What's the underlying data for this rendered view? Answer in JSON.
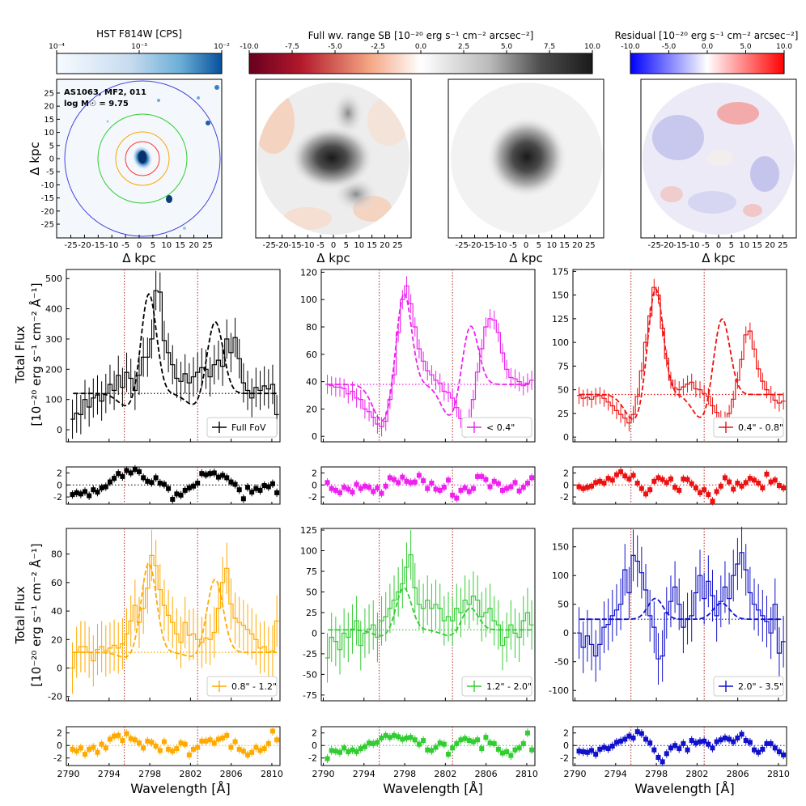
{
  "colorbars": [
    {
      "title": "HST F814W [CPS]",
      "labels": [
        "10⁻⁴",
        "10⁻³",
        "10⁻²"
      ],
      "palette": "blues"
    },
    {
      "title": "Full wv. range SB [10⁻²⁰ erg s⁻¹ cm⁻² arcsec⁻²]",
      "labels": [
        "-10.0",
        "-7.5",
        "-5.0",
        "-2.5",
        "0.0",
        "2.5",
        "5.0",
        "7.5",
        "10.0"
      ],
      "palette": "red-grey"
    },
    {
      "title": "Residual [10⁻²⁰ erg s⁻¹ cm⁻² arcsec⁻²]",
      "labels": [
        "-10.0",
        "-5.0",
        "0.0",
        "5.0",
        "10.0"
      ],
      "palette": "bwr"
    }
  ],
  "image_panels": {
    "hst_annotation": [
      "AS1063, MF2, 011",
      "log M☉ = 9.75"
    ],
    "x_label": "Δ kpc",
    "y_label": "Δ kpc",
    "tick_labels": [
      "-25",
      "-20",
      "-15",
      "-10",
      "-5",
      "0",
      "5",
      "10",
      "15",
      "20",
      "25"
    ],
    "aperture_colors": [
      "#ff3333",
      "#ffa500",
      "#33cc33",
      "#4444dd"
    ]
  },
  "spectra": {
    "x_label": "Wavelength [Å]",
    "y_label_lines": [
      "Total Flux",
      "[10⁻²⁰ erg s⁻¹ cm⁻² Å⁻¹]"
    ],
    "x_ticks": [
      2790,
      2794,
      2798,
      2802,
      2806,
      2810
    ],
    "xlim": [
      2789.8,
      2810.8
    ],
    "line_markers": [
      2795.5,
      2802.7
    ],
    "residual_ticks": [
      -2,
      0,
      2
    ],
    "residual_ylim": [
      -3.2,
      3.0
    ]
  },
  "chart_data": [
    {
      "type": "line",
      "name": "Full FoV",
      "legend": "Full FoV",
      "color": "#000000",
      "continuum": 120,
      "ylim": [
        -40,
        530
      ],
      "yticks": [
        0,
        100,
        200,
        300,
        400,
        500
      ],
      "model": {
        "absorption": [
          45,
          45
        ],
        "peaks": [
          335,
          245
        ]
      },
      "fluxes": [
        35,
        55,
        50,
        100,
        75,
        105,
        115,
        95,
        120,
        150,
        130,
        180,
        140,
        190,
        170,
        130,
        180,
        240,
        240,
        300,
        460,
        455,
        295,
        255,
        215,
        170,
        160,
        185,
        155,
        175,
        190,
        205,
        200,
        175,
        215,
        230,
        210,
        300,
        255,
        305,
        235,
        155,
        130,
        105,
        140,
        130,
        145,
        135,
        150,
        50
      ],
      "errors": [
        65,
        65,
        65,
        65,
        65,
        65,
        65,
        65,
        65,
        65,
        65,
        65,
        65,
        65,
        65,
        65,
        65,
        65,
        65,
        65,
        65,
        65,
        65,
        65,
        65,
        65,
        65,
        65,
        65,
        65,
        65,
        65,
        65,
        65,
        65,
        65,
        65,
        65,
        65,
        65,
        65,
        65,
        65,
        65,
        65,
        65,
        65,
        65,
        65,
        65
      ],
      "residuals": [
        -1.6,
        -1.3,
        -1.5,
        -1.1,
        -1.8,
        -0.8,
        -1.2,
        -0.5,
        -0.3,
        0.5,
        1.1,
        1.9,
        1.4,
        2.4,
        2.0,
        2.6,
        2.2,
        1.2,
        0.6,
        0.4,
        1.2,
        0.3,
        0.1,
        -0.6,
        -2.4,
        -1.5,
        -1.7,
        -0.9,
        -0.5,
        -0.2,
        0.3,
        1.9,
        1.7,
        1.9,
        2.0,
        1.3,
        1.6,
        1.2,
        0.5,
        0.1,
        -0.8,
        -2.3,
        -0.4,
        -1.2,
        -0.6,
        -0.9,
        -0.1,
        -0.3,
        0.2,
        -1.3
      ]
    },
    {
      "type": "line",
      "name": "< 0.4\"",
      "legend": "< 0.4\"",
      "color": "#ee22ee",
      "continuum": 38,
      "ylim": [
        -4,
        122
      ],
      "yticks": [
        0,
        20,
        40,
        60,
        80,
        100,
        120
      ],
      "model": {
        "absorption": [
          28,
          25
        ],
        "peaks": [
          70,
          47
        ]
      },
      "fluxes": [
        38,
        37,
        36,
        36,
        35,
        31,
        33,
        28,
        27,
        20,
        18,
        14,
        9,
        7,
        11,
        27,
        45,
        76,
        100,
        110,
        97,
        80,
        64,
        55,
        48,
        45,
        41,
        39,
        33,
        32,
        28,
        21,
        13,
        6,
        13,
        27,
        47,
        64,
        80,
        86,
        85,
        76,
        61,
        49,
        43,
        42,
        40,
        37,
        39,
        41
      ],
      "errors": [
        7,
        7,
        7,
        7,
        7,
        7,
        7,
        7,
        7,
        7,
        7,
        7,
        7,
        7,
        7,
        7,
        7,
        7,
        7,
        7,
        7,
        7,
        7,
        7,
        7,
        7,
        7,
        7,
        7,
        7,
        7,
        7,
        7,
        7,
        7,
        7,
        7,
        7,
        7,
        7,
        7,
        7,
        7,
        7,
        7,
        7,
        7,
        7,
        7,
        7
      ],
      "residuals": [
        0.4,
        -0.6,
        -0.9,
        -1.3,
        -0.4,
        -0.7,
        -1.2,
        0.1,
        -0.6,
        -0.2,
        -0.4,
        -1.1,
        -0.5,
        -1.4,
        -0.2,
        1.2,
        0.9,
        0.4,
        1.3,
        0.6,
        0.4,
        0.5,
        1.6,
        0.7,
        -0.6,
        0.3,
        -0.7,
        -0.9,
        -0.4,
        0.8,
        -1.7,
        -2.2,
        -0.9,
        -0.5,
        -1.1,
        -0.6,
        1.4,
        1.4,
        0.9,
        -0.3,
        0.6,
        0.2,
        -0.9,
        -0.6,
        -0.3,
        0.4,
        -1.0,
        -0.4,
        0.3,
        1.2
      ]
    },
    {
      "type": "line",
      "name": "0.4\" - 0.8\"",
      "legend": "0.4\" - 0.8\"",
      "color": "#ee1111",
      "continuum": 45,
      "ylim": [
        -5,
        177
      ],
      "yticks": [
        0,
        25,
        50,
        75,
        100,
        125,
        150,
        175
      ],
      "model": {
        "absorption": [
          28,
          28
        ],
        "peaks": [
          115,
          85
        ]
      },
      "fluxes": [
        44,
        41,
        42,
        40,
        43,
        44,
        41,
        37,
        33,
        28,
        24,
        20,
        15,
        24,
        43,
        70,
        100,
        128,
        158,
        150,
        115,
        83,
        60,
        52,
        50,
        53,
        56,
        58,
        51,
        50,
        46,
        43,
        33,
        26,
        19,
        18,
        25,
        40,
        60,
        82,
        108,
        112,
        93,
        72,
        59,
        50,
        45,
        39,
        36,
        38
      ],
      "errors": [
        9,
        9,
        9,
        9,
        9,
        9,
        9,
        9,
        9,
        9,
        9,
        9,
        9,
        9,
        9,
        9,
        9,
        9,
        9,
        9,
        9,
        9,
        9,
        9,
        9,
        9,
        9,
        9,
        9,
        9,
        9,
        9,
        9,
        9,
        9,
        9,
        9,
        9,
        9,
        9,
        9,
        9,
        9,
        9,
        9,
        9,
        9,
        9,
        9,
        9
      ],
      "residuals": [
        -0.3,
        -0.6,
        -0.4,
        -0.2,
        0.4,
        0.6,
        0.3,
        1.1,
        0.8,
        1.7,
        2.2,
        1.5,
        1.0,
        1.6,
        0.3,
        -0.6,
        -1.5,
        -0.8,
        0.6,
        1.2,
        0.9,
        0.4,
        1.0,
        -0.4,
        -0.9,
        1.0,
        0.9,
        0.2,
        -0.5,
        -1.3,
        -0.8,
        -1.6,
        -2.7,
        -1.1,
        -0.2,
        1.2,
        0.5,
        -0.7,
        0.3,
        -0.2,
        0.4,
        1.1,
        0.8,
        0.3,
        -0.5,
        1.8,
        0.5,
        0.8,
        -0.1,
        -0.5
      ]
    },
    {
      "type": "line",
      "name": "0.8\" - 1.2\"",
      "legend": "0.8\" - 1.2\"",
      "color": "#ffaa00",
      "continuum": 11,
      "ylim": [
        -23,
        98
      ],
      "yticks": [
        -20,
        0,
        20,
        40,
        60,
        80
      ],
      "model": {
        "absorption": [
          4,
          4
        ],
        "peaks": [
          63,
          52
        ]
      },
      "fluxes": [
        0,
        11,
        15,
        15,
        11,
        5,
        13,
        15,
        12,
        14,
        16,
        14,
        17,
        24,
        33,
        44,
        32,
        42,
        56,
        79,
        72,
        55,
        44,
        37,
        32,
        24,
        18,
        32,
        23,
        24,
        20,
        18,
        21,
        20,
        25,
        42,
        60,
        70,
        45,
        35,
        32,
        30,
        27,
        24,
        20,
        14,
        15,
        11,
        12,
        33
      ],
      "errors": [
        18,
        18,
        18,
        18,
        18,
        18,
        18,
        18,
        18,
        18,
        18,
        18,
        18,
        18,
        18,
        18,
        18,
        18,
        18,
        18,
        18,
        18,
        18,
        18,
        18,
        18,
        18,
        18,
        18,
        18,
        18,
        18,
        18,
        18,
        18,
        18,
        18,
        18,
        18,
        18,
        18,
        18,
        18,
        18,
        18,
        18,
        18,
        18,
        18,
        18
      ],
      "residuals": [
        -0.6,
        -0.9,
        -0.4,
        -1.4,
        -0.6,
        -0.3,
        -1.1,
        0.2,
        -0.4,
        1.0,
        1.5,
        1.6,
        0.8,
        1.9,
        1.1,
        0.9,
        0.4,
        -0.4,
        0.7,
        0.5,
        -0.1,
        -0.8,
        0.6,
        -0.6,
        -0.9,
        -0.5,
        0.4,
        0.2,
        -1.5,
        -0.6,
        -0.3,
        0.7,
        0.7,
        0.9,
        0.4,
        1.0,
        1.2,
        1.6,
        -0.3,
        0.6,
        -0.6,
        -0.9,
        -1.5,
        -1.1,
        -0.3,
        -0.8,
        -0.5,
        0.3,
        2.3,
        0.9
      ]
    },
    {
      "type": "line",
      "name": "1.2\" - 2.0\"",
      "legend": "1.2\" - 2.0\"",
      "color": "#33cc33",
      "continuum": 4,
      "ylim": [
        -82,
        127
      ],
      "yticks": [
        -75,
        -50,
        -25,
        0,
        25,
        50,
        75,
        100,
        125
      ],
      "model": {
        "absorption": [
          8,
          8
        ],
        "peaks": [
          52,
          28
        ]
      },
      "fluxes": [
        -30,
        -5,
        -10,
        -20,
        0,
        -5,
        5,
        15,
        -15,
        0,
        5,
        10,
        -5,
        15,
        20,
        30,
        40,
        50,
        60,
        80,
        95,
        55,
        35,
        30,
        40,
        30,
        35,
        30,
        15,
        20,
        15,
        30,
        25,
        40,
        35,
        45,
        40,
        20,
        25,
        30,
        15,
        10,
        -15,
        -5,
        10,
        0,
        -5,
        15,
        25,
        10
      ],
      "errors": [
        30,
        30,
        30,
        30,
        30,
        30,
        30,
        30,
        30,
        30,
        30,
        30,
        30,
        30,
        30,
        30,
        30,
        30,
        30,
        30,
        30,
        30,
        30,
        30,
        30,
        30,
        30,
        30,
        30,
        30,
        30,
        30,
        30,
        30,
        30,
        30,
        30,
        30,
        30,
        30,
        30,
        30,
        30,
        30,
        30,
        30,
        30,
        30,
        30,
        30
      ],
      "residuals": [
        -2.1,
        -0.8,
        -0.9,
        -1.1,
        -0.4,
        -1.0,
        -0.7,
        -1.0,
        -0.5,
        -0.2,
        0.4,
        0.3,
        0.5,
        1.2,
        1.6,
        1.3,
        1.6,
        1.4,
        1.0,
        1.2,
        1.3,
        0.9,
        0.2,
        0.8,
        -0.7,
        -0.8,
        -0.3,
        0.4,
        0.2,
        -1.4,
        -0.4,
        0.3,
        0.9,
        1.1,
        0.8,
        0.6,
        0.9,
        -0.5,
        1.3,
        0.4,
        0.3,
        -0.6,
        -1.2,
        -1.0,
        -1.6,
        -0.7,
        -0.4,
        0.3,
        2.0,
        -0.7
      ]
    },
    {
      "type": "line",
      "name": "2.0\" - 3.5\"",
      "legend": "2.0\" - 3.5\"",
      "color": "#1111cc",
      "continuum": 24,
      "ylim": [
        -118,
        182
      ],
      "yticks": [
        -100,
        -50,
        0,
        50,
        100,
        150
      ],
      "model": {
        "absorption": [
          0,
          0
        ],
        "peaks": [
          36,
          28
        ]
      },
      "fluxes": [
        0,
        -25,
        -5,
        -20,
        -40,
        -20,
        10,
        15,
        30,
        40,
        50,
        110,
        70,
        135,
        125,
        105,
        75,
        30,
        10,
        -45,
        -40,
        35,
        55,
        80,
        50,
        10,
        25,
        30,
        70,
        100,
        60,
        90,
        65,
        30,
        55,
        80,
        60,
        100,
        120,
        140,
        110,
        70,
        50,
        40,
        30,
        20,
        0,
        50,
        -35,
        -15
      ],
      "errors": [
        45,
        45,
        45,
        45,
        45,
        45,
        45,
        45,
        45,
        45,
        45,
        45,
        45,
        45,
        45,
        45,
        45,
        45,
        45,
        45,
        45,
        45,
        45,
        45,
        45,
        45,
        45,
        45,
        45,
        45,
        45,
        45,
        45,
        45,
        45,
        45,
        45,
        45,
        45,
        45,
        45,
        45,
        45,
        45,
        45,
        45,
        45,
        45,
        45,
        45
      ],
      "residuals": [
        -0.9,
        -1.0,
        -1.1,
        -0.8,
        -1.4,
        -0.6,
        -0.3,
        -0.5,
        -0.1,
        0.5,
        0.7,
        1.0,
        1.5,
        1.2,
        2.2,
        1.9,
        1.0,
        0.4,
        -0.7,
        -1.9,
        -2.6,
        -1.3,
        -0.4,
        0.0,
        -0.5,
        0.3,
        -0.7,
        0.8,
        0.4,
        0.6,
        0.7,
        0.2,
        -0.4,
        0.6,
        0.9,
        1.2,
        1.0,
        0.6,
        1.2,
        1.8,
        0.8,
        0.5,
        -0.7,
        -1.1,
        -0.6,
        0.3,
        0.3,
        -0.4,
        -1.0,
        -1.5
      ]
    }
  ]
}
